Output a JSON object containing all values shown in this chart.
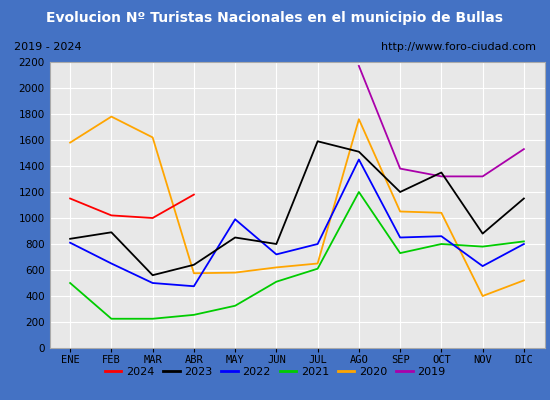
{
  "title": "Evolucion Nº Turistas Nacionales en el municipio de Bullas",
  "subtitle_left": "2019 - 2024",
  "subtitle_right": "http://www.foro-ciudad.com",
  "months": [
    "ENE",
    "FEB",
    "MAR",
    "ABR",
    "MAY",
    "JUN",
    "JUL",
    "AGO",
    "SEP",
    "OCT",
    "NOV",
    "DIC"
  ],
  "series": {
    "2024": [
      1150,
      1020,
      1000,
      1180,
      null,
      null,
      null,
      null,
      null,
      null,
      null,
      null
    ],
    "2023": [
      840,
      890,
      560,
      640,
      850,
      800,
      1590,
      1510,
      1200,
      1350,
      880,
      1150
    ],
    "2022": [
      810,
      650,
      500,
      475,
      990,
      720,
      800,
      1450,
      850,
      860,
      630,
      800
    ],
    "2021": [
      500,
      225,
      225,
      255,
      325,
      510,
      610,
      1200,
      730,
      800,
      780,
      820
    ],
    "2020": [
      1580,
      1780,
      1620,
      575,
      580,
      620,
      650,
      1760,
      1050,
      1040,
      400,
      520
    ],
    "2019": [
      null,
      null,
      null,
      null,
      null,
      null,
      null,
      2170,
      1380,
      1320,
      1320,
      1530
    ]
  },
  "colors": {
    "2024": "#ff0000",
    "2023": "#000000",
    "2022": "#0000ff",
    "2021": "#00cc00",
    "2020": "#ffa500",
    "2019": "#aa00aa"
  },
  "ylim": [
    0,
    2200
  ],
  "yticks": [
    0,
    200,
    400,
    600,
    800,
    1000,
    1200,
    1400,
    1600,
    1800,
    2000,
    2200
  ],
  "title_bg": "#4472c4",
  "title_color": "#ffffff",
  "plot_bg": "#e8e8e8",
  "grid_color": "#ffffff",
  "border_color": "#4472c4",
  "outer_bg": "#4472c4"
}
